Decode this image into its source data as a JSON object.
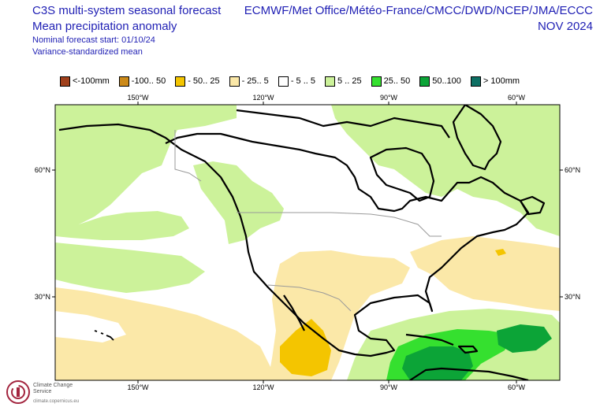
{
  "header": {
    "title_line1": "C3S multi-system seasonal forecast",
    "title_line2": "Mean precipitation anomaly",
    "forecast_start": "Nominal forecast start: 01/10/24",
    "method": "Variance-standardized mean",
    "systems": "ECMWF/Met Office/Météo-France/CMCC/DWD/NCEP/JMA/ECCC",
    "month": "NOV 2024"
  },
  "legend": [
    {
      "label": "<-100mm",
      "color": "#a0401b"
    },
    {
      "label": "-100.. 50",
      "color": "#cc8a19"
    },
    {
      "label": "- 50.. 25",
      "color": "#f4c500"
    },
    {
      "label": "- 25.. 5",
      "color": "#fbe8a8"
    },
    {
      "label": "- 5 .. 5",
      "color": "#ffffff"
    },
    {
      "label": "5 .. 25",
      "color": "#ccf29a"
    },
    {
      "label": "25.. 50",
      "color": "#35e02f"
    },
    {
      "label": "50..100",
      "color": "#0ca437"
    },
    {
      "label": "> 100mm",
      "color": "#0d6f63"
    }
  ],
  "axes": {
    "lon_top": [
      "150°W",
      "120°W",
      "90°W",
      "60°W"
    ],
    "lon_bottom": [
      "150°W",
      "120°W",
      "90°W",
      "60°W"
    ],
    "lat_left": [
      "60°N",
      "30°N"
    ],
    "lat_right": [
      "60°N",
      "30°N"
    ]
  },
  "logo": {
    "name": "Climate Change Service",
    "url": "climate.copernicus.eu"
  }
}
